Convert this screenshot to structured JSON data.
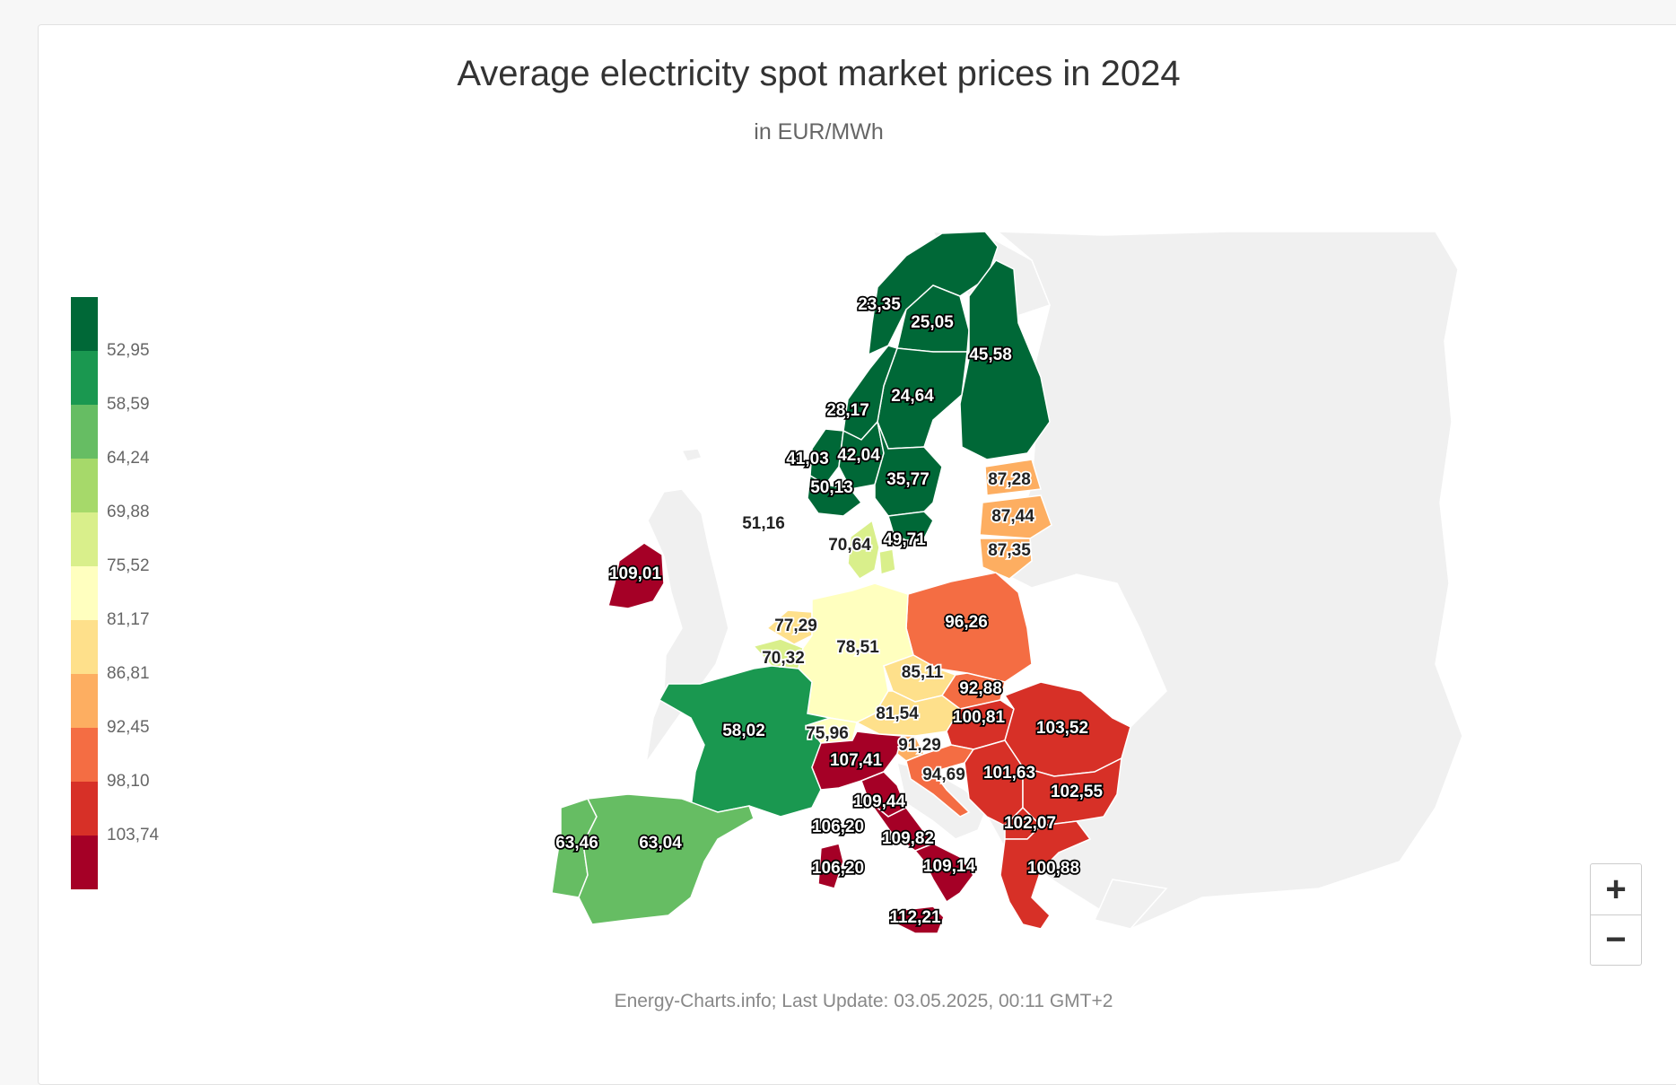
{
  "title": "Average electricity spot market prices in 2024",
  "subtitle": "in EUR/MWh",
  "credits": "Energy-Charts.info; Last Update: 03.05.2025, 00:11 GMT+2",
  "zoom": {
    "in_label": "+",
    "out_label": "−"
  },
  "legend": {
    "colors": [
      "#006837",
      "#1a9850",
      "#66bd63",
      "#a6d96a",
      "#d9ef8b",
      "#ffffbf",
      "#fee08b",
      "#fdae61",
      "#f46d43",
      "#d73027",
      "#a50026"
    ],
    "labels": [
      "52,95",
      "58,59",
      "64,24",
      "69,88",
      "75,52",
      "81,17",
      "86,81",
      "92,45",
      "98,10",
      "103,74"
    ]
  },
  "regions": [
    {
      "name": "NO4",
      "label": "23,35"
    },
    {
      "name": "SE1",
      "label": "25,05"
    },
    {
      "name": "FI",
      "label": "45,58"
    },
    {
      "name": "SE2",
      "label": "24,64"
    },
    {
      "name": "NO3",
      "label": "28,17"
    },
    {
      "name": "NO5",
      "label": "41,03"
    },
    {
      "name": "NO1",
      "label": "42,04"
    },
    {
      "name": "NO2",
      "label": "50,13"
    },
    {
      "name": "SE3",
      "label": "35,77"
    },
    {
      "name": "EE",
      "label": "87,28"
    },
    {
      "name": "LV",
      "label": "87,44"
    },
    {
      "name": "LT",
      "label": "87,35"
    },
    {
      "name": "GB",
      "label": "51,16"
    },
    {
      "name": "DK1",
      "label": "70,64"
    },
    {
      "name": "SE4",
      "label": "49,71"
    },
    {
      "name": "IE",
      "label": "109,01"
    },
    {
      "name": "PL",
      "label": "96,26"
    },
    {
      "name": "NL",
      "label": "77,29"
    },
    {
      "name": "DE",
      "label": "78,51"
    },
    {
      "name": "BE",
      "label": "70,32"
    },
    {
      "name": "CZ",
      "label": "85,11"
    },
    {
      "name": "SK",
      "label": "92,88"
    },
    {
      "name": "AT",
      "label": "81,54"
    },
    {
      "name": "HU",
      "label": "100,81"
    },
    {
      "name": "RO",
      "label": "103,52"
    },
    {
      "name": "FR",
      "label": "58,02"
    },
    {
      "name": "CH",
      "label": "75,96"
    },
    {
      "name": "IT-N",
      "label": "107,41"
    },
    {
      "name": "SI",
      "label": "91,29"
    },
    {
      "name": "HR",
      "label": "94,69"
    },
    {
      "name": "RS",
      "label": "101,63"
    },
    {
      "name": "BG",
      "label": "102,55"
    },
    {
      "name": "IT-CN",
      "label": "109,44"
    },
    {
      "name": "MK",
      "label": "102,07"
    },
    {
      "name": "IT-SAR",
      "label": "106,20"
    },
    {
      "name": "IT-CS",
      "label": "109,82"
    },
    {
      "name": "PT",
      "label": "63,46"
    },
    {
      "name": "ES",
      "label": "63,04"
    },
    {
      "name": "IT-SAR2",
      "label": "106,20"
    },
    {
      "name": "IT-S",
      "label": "109,14"
    },
    {
      "name": "GR",
      "label": "100,88"
    },
    {
      "name": "IT-SIC",
      "label": "112,21"
    }
  ]
}
